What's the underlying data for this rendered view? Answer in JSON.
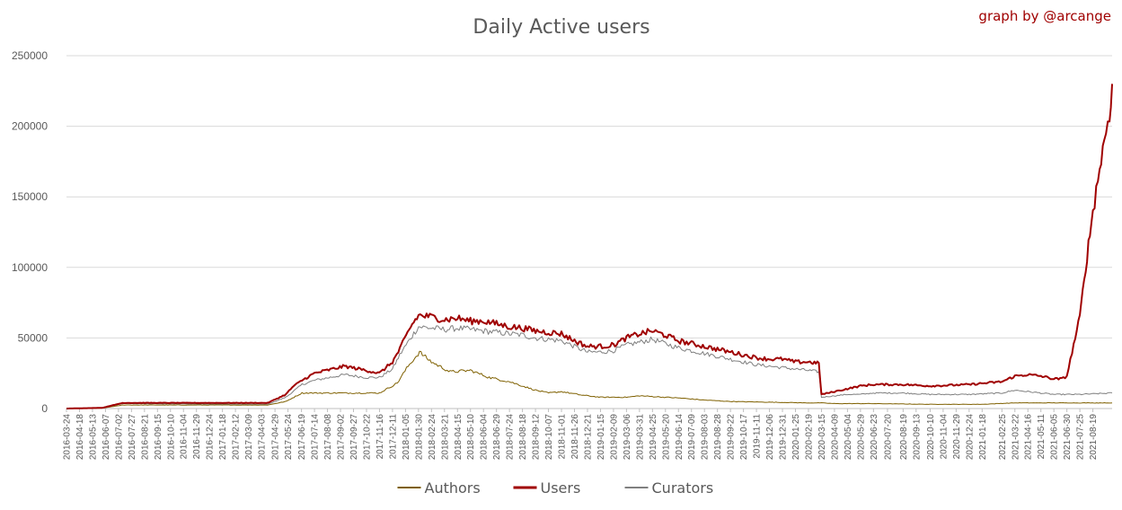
{
  "chart_data": {
    "type": "line",
    "title": "Daily Active users",
    "credit": "graph by @arcange",
    "xlabel": "",
    "ylabel": "",
    "ylim": [
      0,
      250000
    ],
    "y_ticks": [
      0,
      50000,
      100000,
      150000,
      200000,
      250000
    ],
    "y_tick_labels": [
      "0",
      "50000",
      "100000",
      "150000",
      "200000",
      "250000"
    ],
    "x_range": [
      "2016-03-24",
      "2021-09-25"
    ],
    "x_ticks": [
      "2016-03-24",
      "2016-04-18",
      "2016-05-13",
      "2016-06-07",
      "2016-07-02",
      "2016-07-27",
      "2016-08-21",
      "2016-09-15",
      "2016-10-10",
      "2016-11-04",
      "2016-11-29",
      "2016-12-24",
      "2017-01-18",
      "2017-02-12",
      "2017-03-09",
      "2017-04-03",
      "2017-04-29",
      "2017-05-24",
      "2017-06-19",
      "2017-07-14",
      "2017-08-08",
      "2017-09-02",
      "2017-09-27",
      "2017-10-22",
      "2017-11-16",
      "2017-12-11",
      "2018-01-05",
      "2018-01-30",
      "2018-02-24",
      "2018-03-21",
      "2018-04-15",
      "2018-05-10",
      "2018-06-04",
      "2018-06-29",
      "2018-07-24",
      "2018-08-18",
      "2018-09-12",
      "2018-10-07",
      "2018-11-01",
      "2018-11-26",
      "2018-12-21",
      "2019-01-15",
      "2019-02-09",
      "2019-03-06",
      "2019-03-31",
      "2019-04-25",
      "2019-05-20",
      "2019-06-14",
      "2019-07-09",
      "2019-08-03",
      "2019-08-28",
      "2019-09-22",
      "2019-10-17",
      "2019-11-11",
      "2019-12-06",
      "2019-12-31",
      "2020-01-25",
      "2020-02-19",
      "2020-03-15",
      "2020-04-09",
      "2020-05-04",
      "2020-05-29",
      "2020-06-23",
      "2020-07-20",
      "2020-08-19",
      "2020-09-13",
      "2020-10-10",
      "2020-11-04",
      "2020-11-29",
      "2020-12-24",
      "2021-01-18",
      "2021-02-25",
      "2021-03-22",
      "2021-04-16",
      "2021-05-11",
      "2021-06-05",
      "2021-06-30",
      "2021-07-25",
      "2021-08-19"
    ],
    "grid": true,
    "legend": "bottom",
    "series": [
      {
        "name": "Authors",
        "color": "#7f6000",
        "width": 1,
        "x": [
          "2016-03-24",
          "2016-06-01",
          "2016-07-10",
          "2017-04-15",
          "2017-05-20",
          "2017-06-20",
          "2017-11-16",
          "2017-12-20",
          "2018-01-10",
          "2018-02-01",
          "2018-02-24",
          "2018-04-01",
          "2018-05-10",
          "2018-06-15",
          "2018-07-24",
          "2018-08-18",
          "2018-09-12",
          "2018-10-07",
          "2018-11-01",
          "2018-12-10",
          "2019-01-15",
          "2019-03-06",
          "2019-03-31",
          "2019-06-14",
          "2019-08-03",
          "2019-08-28",
          "2019-09-22",
          "2019-12-06",
          "2020-02-19",
          "2020-03-15",
          "2020-04-09",
          "2020-06-23",
          "2020-10-10",
          "2021-01-18",
          "2021-03-22",
          "2021-06-05",
          "2021-07-25",
          "2021-09-25"
        ],
        "values": [
          0,
          300,
          2500,
          2500,
          5000,
          11000,
          11000,
          18000,
          30000,
          40000,
          33000,
          26000,
          27000,
          22000,
          19000,
          16000,
          13000,
          11000,
          12000,
          9500,
          8000,
          8000,
          9000,
          7500,
          6000,
          5500,
          5000,
          4500,
          4000,
          4000,
          3500,
          3500,
          3000,
          3000,
          4000,
          4000,
          4000,
          4000
        ]
      },
      {
        "name": "Users",
        "color": "#a00000",
        "width": 2,
        "x": [
          "2016-03-24",
          "2016-06-01",
          "2016-07-10",
          "2016-08-01",
          "2017-04-15",
          "2017-05-20",
          "2017-06-01",
          "2017-06-20",
          "2017-07-14",
          "2017-09-10",
          "2017-10-22",
          "2017-11-16",
          "2017-12-11",
          "2017-12-25",
          "2018-01-15",
          "2018-01-30",
          "2018-02-24",
          "2018-03-21",
          "2018-04-15",
          "2018-05-10",
          "2018-06-04",
          "2018-06-29",
          "2018-07-24",
          "2018-08-18",
          "2018-09-12",
          "2018-10-07",
          "2018-11-01",
          "2018-11-26",
          "2018-12-21",
          "2019-01-15",
          "2019-02-09",
          "2019-03-06",
          "2019-03-31",
          "2019-04-25",
          "2019-05-20",
          "2019-06-14",
          "2019-07-09",
          "2019-08-03",
          "2019-08-28",
          "2019-09-22",
          "2019-10-17",
          "2019-11-11",
          "2019-12-06",
          "2019-12-31",
          "2020-01-25",
          "2020-02-19",
          "2020-03-10",
          "2020-03-15",
          "2020-04-09",
          "2020-05-04",
          "2020-05-29",
          "2020-06-23",
          "2020-08-19",
          "2020-10-10",
          "2020-12-24",
          "2021-02-25",
          "2021-03-22",
          "2021-04-16",
          "2021-05-11",
          "2021-06-05",
          "2021-06-20",
          "2021-06-30",
          "2021-07-10",
          "2021-07-25",
          "2021-08-05",
          "2021-08-19",
          "2021-09-01",
          "2021-09-10",
          "2021-09-20",
          "2021-09-25"
        ],
        "values": [
          0,
          500,
          4000,
          4000,
          4000,
          10000,
          15000,
          20000,
          25000,
          30000,
          27000,
          25000,
          33000,
          42000,
          58000,
          66000,
          65000,
          63000,
          64000,
          62000,
          62000,
          60000,
          58000,
          57000,
          55000,
          54000,
          53000,
          48000,
          44000,
          44000,
          45000,
          50000,
          53000,
          55000,
          52000,
          48000,
          46000,
          44000,
          42000,
          40000,
          38000,
          36000,
          35000,
          35000,
          33000,
          33000,
          32000,
          10000,
          12000,
          14000,
          16000,
          17000,
          17000,
          16000,
          17000,
          19000,
          23000,
          24000,
          23000,
          21000,
          21000,
          23000,
          40000,
          65000,
          100000,
          140000,
          170000,
          190000,
          210000,
          230000
        ]
      },
      {
        "name": "Curators",
        "color": "#7f7f7f",
        "width": 1,
        "x": [
          "2016-03-24",
          "2016-06-01",
          "2016-07-10",
          "2017-04-15",
          "2017-05-20",
          "2017-06-20",
          "2017-07-14",
          "2017-09-10",
          "2017-10-22",
          "2017-11-16",
          "2017-12-11",
          "2017-12-25",
          "2018-01-15",
          "2018-01-30",
          "2018-02-24",
          "2018-03-21",
          "2018-04-15",
          "2018-05-10",
          "2018-06-04",
          "2018-06-29",
          "2018-07-24",
          "2018-08-18",
          "2018-09-12",
          "2018-10-07",
          "2018-11-01",
          "2018-11-26",
          "2018-12-21",
          "2019-01-15",
          "2019-02-09",
          "2019-03-06",
          "2019-03-31",
          "2019-04-25",
          "2019-05-20",
          "2019-06-14",
          "2019-07-09",
          "2019-08-03",
          "2019-08-28",
          "2019-09-22",
          "2019-10-17",
          "2019-11-11",
          "2019-12-06",
          "2019-12-31",
          "2020-01-25",
          "2020-02-19",
          "2020-03-10",
          "2020-03-15",
          "2020-04-09",
          "2020-05-04",
          "2020-05-29",
          "2020-06-23",
          "2020-08-19",
          "2020-10-10",
          "2020-12-24",
          "2021-02-25",
          "2021-03-22",
          "2021-04-16",
          "2021-05-11",
          "2021-06-05",
          "2021-07-25",
          "2021-09-25"
        ],
        "values": [
          0,
          400,
          3500,
          3000,
          8000,
          17000,
          20000,
          24000,
          22000,
          22000,
          28000,
          38000,
          50000,
          58000,
          57000,
          56000,
          57000,
          56000,
          55000,
          54000,
          53000,
          52000,
          50000,
          49000,
          48000,
          44000,
          40000,
          40000,
          41000,
          45000,
          47000,
          49000,
          46000,
          43000,
          41000,
          39000,
          37000,
          35000,
          33000,
          31000,
          30000,
          29000,
          28000,
          27000,
          26000,
          8000,
          9000,
          10000,
          10000,
          11000,
          11000,
          10000,
          10000,
          11000,
          13000,
          12000,
          11000,
          10000,
          10000,
          11000
        ]
      }
    ]
  }
}
